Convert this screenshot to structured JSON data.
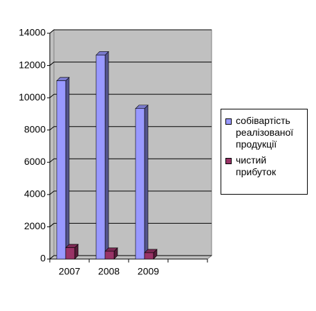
{
  "chart_data": {
    "type": "bar",
    "categories": [
      "2007",
      "2008",
      "2009",
      null
    ],
    "series": [
      {
        "name": "собівартість реалізованої продукції",
        "color": "#9999ff",
        "values": [
          11050,
          12650,
          9330,
          null
        ]
      },
      {
        "name": "чистий прибуток",
        "color": "#993366",
        "values": [
          700,
          480,
          390,
          null
        ]
      }
    ],
    "ylim": [
      0,
      14000
    ],
    "yticks": [
      0,
      2000,
      4000,
      6000,
      8000,
      10000,
      12000,
      14000
    ],
    "grid": true,
    "legend": "right"
  }
}
